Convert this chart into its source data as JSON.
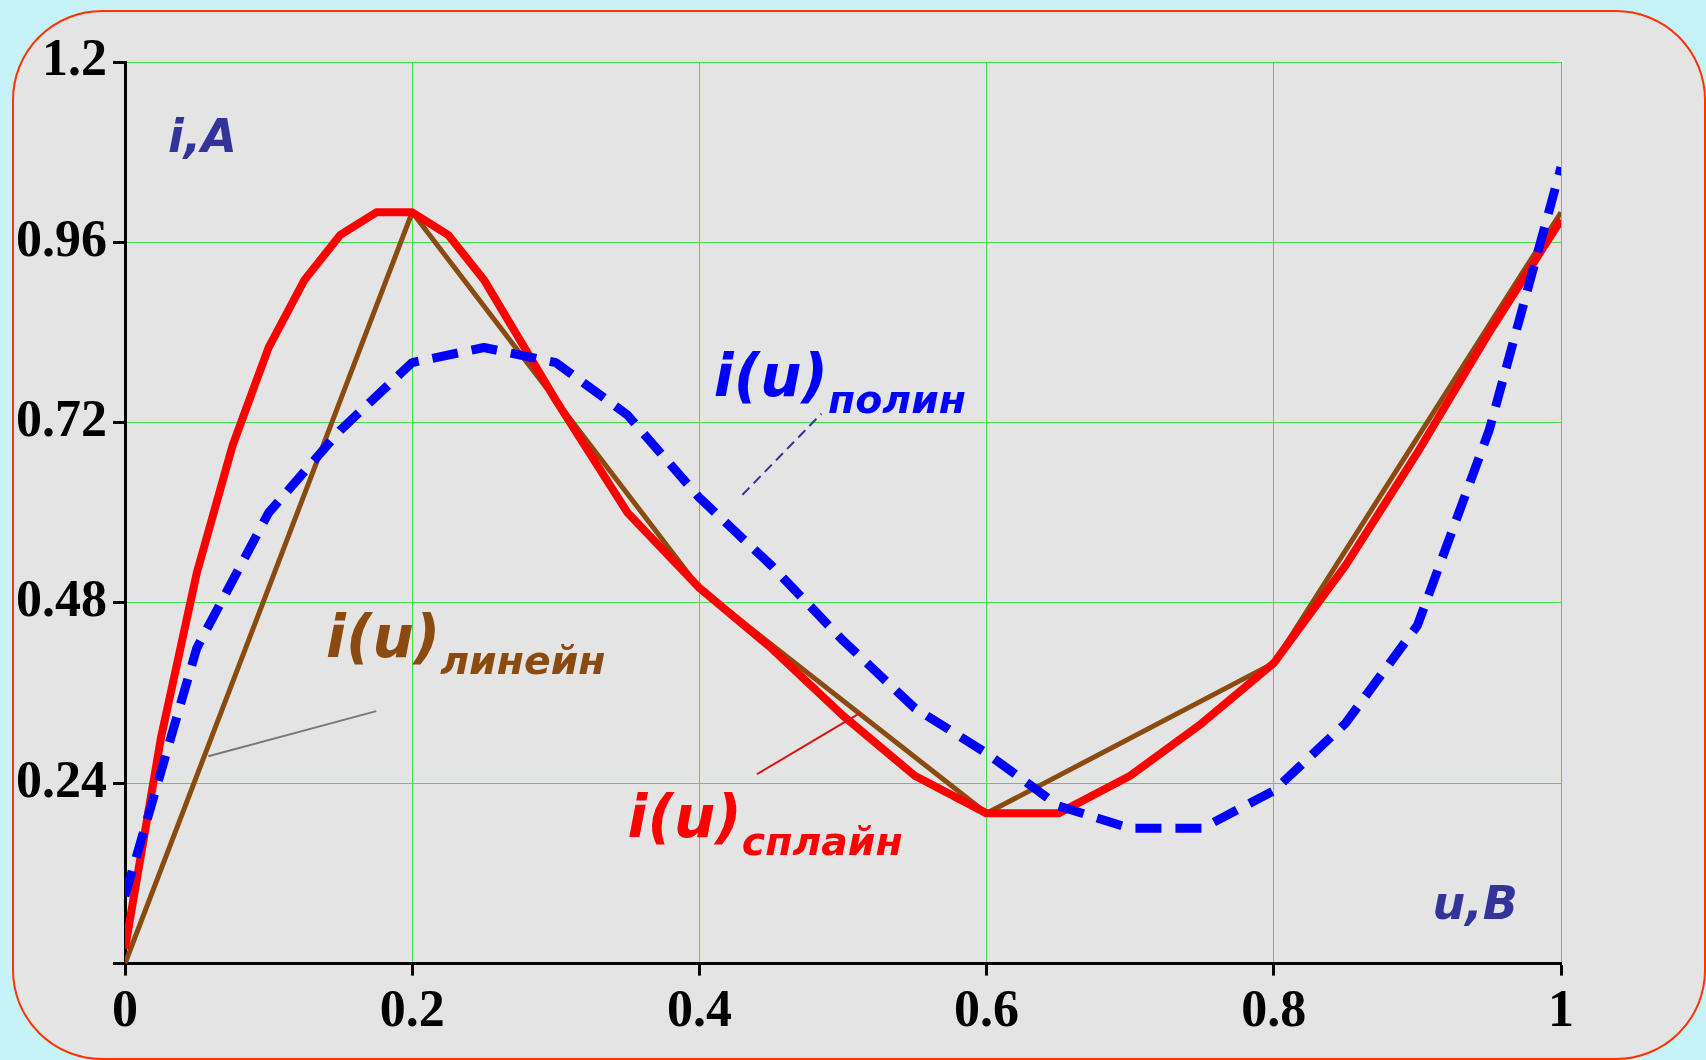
{
  "chart_data": {
    "type": "line",
    "xlabel": "u,B",
    "ylabel": "i,A",
    "xlim": [
      0,
      1
    ],
    "xticks": [
      0,
      0.2,
      0.4,
      0.6,
      0.8,
      1
    ],
    "ylim": [
      0,
      1.2
    ],
    "yticks": [
      {
        "value": 0,
        "label": null
      },
      0.24,
      0.48,
      0.72,
      0.96,
      1.2
    ],
    "grid": true,
    "legend": false,
    "marker": "none",
    "series": [
      {
        "name": "i(u)$_{полин}$",
        "color": "#0000ff",
        "line_style": "dashed",
        "x": [
          0,
          0.05,
          0.1,
          0.15,
          0.2,
          0.25,
          0.3,
          0.35,
          0.4,
          0.45,
          0.5,
          0.55,
          0.6,
          0.65,
          0.7,
          0.75,
          0.8,
          0.85,
          0.9,
          0.95,
          1
        ],
        "values": [
          0.09,
          0.42,
          0.6,
          0.71,
          0.8,
          0.82,
          0.8,
          0.73,
          0.62,
          0.53,
          0.43,
          0.34,
          0.28,
          0.21,
          0.18,
          0.18,
          0.23,
          0.32,
          0.45,
          0.71,
          1.06
        ]
      },
      {
        "name": "i(u)$_{сплайн}$",
        "color": "#ff0000",
        "line_style": "solid",
        "x": [
          0,
          0.025,
          0.05,
          0.075,
          0.1,
          0.125,
          0.15,
          0.175,
          0.2,
          0.225,
          0.25,
          0.3,
          0.35,
          0.4,
          0.45,
          0.5,
          0.55,
          0.6,
          0.65,
          0.7,
          0.75,
          0.8,
          0.85,
          0.9,
          0.95,
          1
        ],
        "values": [
          0.02,
          0.3,
          0.52,
          0.69,
          0.82,
          0.91,
          0.97,
          1.0,
          1.0,
          0.97,
          0.91,
          0.75,
          0.6,
          0.5,
          0.42,
          0.33,
          0.25,
          0.2,
          0.2,
          0.25,
          0.32,
          0.4,
          0.53,
          0.68,
          0.84,
          0.99
        ]
      },
      {
        "name": "i(u)$_{линейн}$",
        "color": "#8b4a10",
        "line_style": "solid",
        "x": [
          0,
          0.2,
          0.4,
          0.6,
          0.8,
          1
        ],
        "values": [
          0,
          1,
          0.5,
          0.2,
          0.4,
          1
        ]
      }
    ]
  }
}
